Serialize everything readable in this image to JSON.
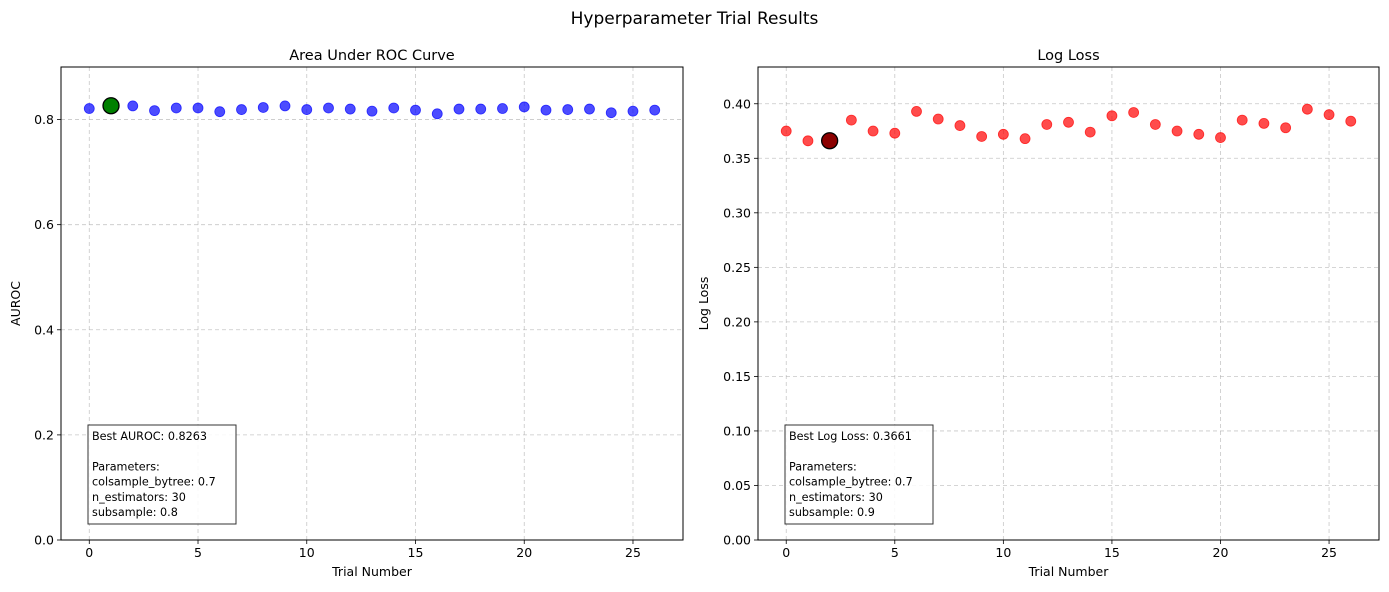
{
  "figure_title": "Hyperparameter Trial Results",
  "chart_data": [
    {
      "type": "scatter",
      "title": "Area Under ROC Curve",
      "xlabel": "Trial Number",
      "ylabel": "AUROC",
      "xlim": [
        -1.3,
        27.3
      ],
      "ylim": [
        0,
        0.9
      ],
      "xticks": [
        0,
        5,
        10,
        15,
        20,
        25
      ],
      "xtick_labels": [
        "0",
        "5",
        "10",
        "15",
        "20",
        "25"
      ],
      "yticks": [
        0,
        0.2,
        0.4,
        0.6,
        0.8
      ],
      "ytick_labels": [
        "0.0",
        "0.2",
        "0.4",
        "0.6",
        "0.8"
      ],
      "grid": true,
      "point_color": "#0000ff",
      "best_color": "#008000",
      "x": [
        0,
        1,
        2,
        3,
        4,
        5,
        6,
        7,
        8,
        9,
        10,
        11,
        12,
        13,
        14,
        15,
        16,
        17,
        18,
        19,
        20,
        21,
        22,
        23,
        24,
        25,
        26
      ],
      "y": [
        0.821,
        0.8263,
        0.826,
        0.817,
        0.822,
        0.822,
        0.815,
        0.819,
        0.823,
        0.826,
        0.819,
        0.822,
        0.82,
        0.816,
        0.822,
        0.818,
        0.811,
        0.82,
        0.82,
        0.821,
        0.824,
        0.818,
        0.819,
        0.82,
        0.813,
        0.816,
        0.818
      ],
      "best_index": 1,
      "annotation": {
        "lines": [
          "Best AUROC: 0.8263",
          "",
          "Parameters:",
          "colsample_bytree: 0.7",
          "n_estimators: 30",
          "subsample: 0.8"
        ]
      }
    },
    {
      "type": "scatter",
      "title": "Log Loss",
      "xlabel": "Trial Number",
      "ylabel": "Log Loss",
      "xlim": [
        -1.3,
        27.3
      ],
      "ylim": [
        0,
        0.4337
      ],
      "xticks": [
        0,
        5,
        10,
        15,
        20,
        25
      ],
      "xtick_labels": [
        "0",
        "5",
        "10",
        "15",
        "20",
        "25"
      ],
      "yticks": [
        0,
        0.05,
        0.1,
        0.15,
        0.2,
        0.25,
        0.3,
        0.35,
        0.4
      ],
      "ytick_labels": [
        "0.00",
        "0.05",
        "0.10",
        "0.15",
        "0.20",
        "0.25",
        "0.30",
        "0.35",
        "0.40"
      ],
      "grid": true,
      "point_color": "#ff0000",
      "best_color": "#8b0000",
      "x": [
        0,
        1,
        2,
        3,
        4,
        5,
        6,
        7,
        8,
        9,
        10,
        11,
        12,
        13,
        14,
        15,
        16,
        17,
        18,
        19,
        20,
        21,
        22,
        23,
        24,
        25,
        26
      ],
      "y": [
        0.375,
        0.366,
        0.3661,
        0.385,
        0.375,
        0.373,
        0.393,
        0.386,
        0.38,
        0.37,
        0.372,
        0.368,
        0.381,
        0.383,
        0.374,
        0.389,
        0.392,
        0.381,
        0.375,
        0.372,
        0.369,
        0.385,
        0.382,
        0.378,
        0.395,
        0.39,
        0.384
      ],
      "best_index": 2,
      "annotation": {
        "lines": [
          "Best Log Loss: 0.3661",
          "",
          "Parameters:",
          "colsample_bytree: 0.7",
          "n_estimators: 30",
          "subsample: 0.9"
        ]
      }
    }
  ]
}
